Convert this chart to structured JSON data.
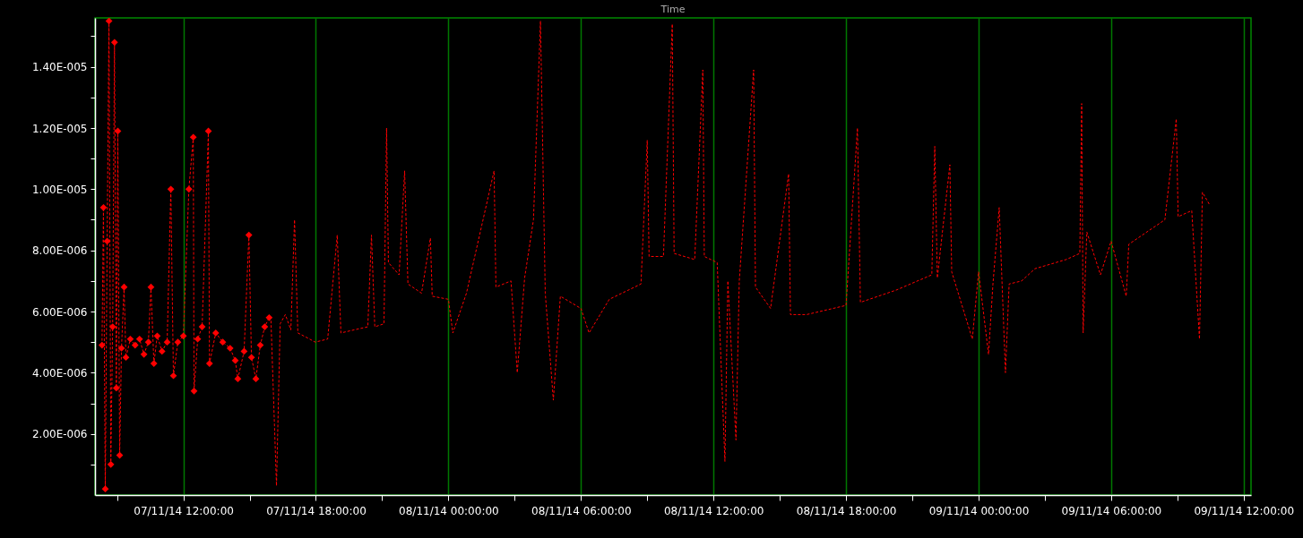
{
  "chart_data": {
    "type": "line",
    "title": "Time",
    "xlim": [
      "--11-07T08:00",
      "--11-09T12:20"
    ],
    "xticks": [
      {
        "value": "--11-07T09:00",
        "label": null
      },
      {
        "value": "--11-07T12:00",
        "label": "07/11/14 12:00:00"
      },
      {
        "value": "--11-07T15:00",
        "label": null
      },
      {
        "value": "--11-07T18:00",
        "label": "07/11/14 18:00:00"
      },
      {
        "value": "--11-07T21:00",
        "label": null
      },
      {
        "value": "--11-08T00:00",
        "label": "08/11/14 00:00:00"
      },
      {
        "value": "--11-08T03:00",
        "label": null
      },
      {
        "value": "--11-08T06:00",
        "label": "08/11/14 06:00:00"
      },
      {
        "value": "--11-08T09:00",
        "label": null
      },
      {
        "value": "--11-08T12:00",
        "label": "08/11/14 12:00:00"
      },
      {
        "value": "--11-08T15:00",
        "label": null
      },
      {
        "value": "--11-08T18:00",
        "label": "08/11/14 18:00:00"
      },
      {
        "value": "--11-08T21:00",
        "label": null
      },
      {
        "value": "--11-09T00:00",
        "label": "09/11/14 00:00:00"
      },
      {
        "value": "--11-09T03:00",
        "label": null
      },
      {
        "value": "--11-09T06:00",
        "label": "09/11/14 06:00:00"
      },
      {
        "value": "--11-09T09:00",
        "label": null
      },
      {
        "value": "--11-09T12:00",
        "label": "09/11/14 12:00:00"
      }
    ],
    "ylim": [
      0,
      1.56e-05
    ],
    "yticks": [
      {
        "value": 1e-06,
        "label": null
      },
      {
        "value": 2e-06,
        "label": "2.00E-006"
      },
      {
        "value": 3e-06,
        "label": null
      },
      {
        "value": 4e-06,
        "label": "4.00E-006"
      },
      {
        "value": 5e-06,
        "label": null
      },
      {
        "value": 6e-06,
        "label": "6.00E-006"
      },
      {
        "value": 7e-06,
        "label": null
      },
      {
        "value": 8e-06,
        "label": "8.00E-006"
      },
      {
        "value": 9e-06,
        "label": null
      },
      {
        "value": 1e-05,
        "label": "1.00E-005"
      },
      {
        "value": 1.1e-05,
        "label": null
      },
      {
        "value": 1.2e-05,
        "label": "1.20E-005"
      },
      {
        "value": 1.3e-05,
        "label": null
      },
      {
        "value": 1.4e-05,
        "label": "1.40E-005"
      },
      {
        "value": 1.5e-05,
        "label": null
      }
    ],
    "grid": "x",
    "series": [
      {
        "color": "#ff0000",
        "marker": "diamond",
        "line_style": "dashed",
        "x": [
          "--11-07T08:19",
          "--11-07T08:23",
          "--11-07T08:28",
          "--11-07T08:33",
          "--11-07T08:38",
          "--11-07T08:43",
          "--11-07T08:48",
          "--11-07T08:53",
          "--11-07T08:58",
          "--11-07T09:02",
          "--11-07T09:07",
          "--11-07T09:12",
          "--11-07T09:19",
          "--11-07T09:24",
          "--11-07T09:36",
          "--11-07T09:49",
          "--11-07T10:01",
          "--11-07T10:13",
          "--11-07T10:25",
          "--11-07T10:32",
          "--11-07T10:40",
          "--11-07T10:49",
          "--11-07T11:02",
          "--11-07T11:16",
          "--11-07T11:26",
          "--11-07T11:33",
          "--11-07T11:45",
          "--11-07T12:00",
          "--11-07T12:15",
          "--11-07T12:27",
          "--11-07T12:29",
          "--11-07T12:39",
          "--11-07T12:51",
          "--11-07T13:08",
          "--11-07T13:11",
          "--11-07T13:28",
          "--11-07T13:47",
          "--11-07T14:07",
          "--11-07T14:21",
          "--11-07T14:28",
          "--11-07T14:45",
          "--11-07T14:58",
          "--11-07T15:05",
          "--11-07T15:17",
          "--11-07T15:29",
          "--11-07T15:41",
          "--11-07T15:53"
        ],
        "values": [
          4.9e-06,
          9.4e-06,
          2e-07,
          8.3e-06,
          1.55e-05,
          1e-06,
          5.5e-06,
          1.48e-05,
          3.5e-06,
          1.19e-05,
          1.3e-06,
          4.8e-06,
          6.8e-06,
          4.5e-06,
          5.1e-06,
          4.9e-06,
          5.1e-06,
          4.6e-06,
          5e-06,
          6.8e-06,
          4.3e-06,
          5.2e-06,
          4.7e-06,
          5e-06,
          1e-05,
          3.9e-06,
          5e-06,
          5.2e-06,
          1e-05,
          1.17e-05,
          3.4e-06,
          5.1e-06,
          5.5e-06,
          1.19e-05,
          4.3e-06,
          5.3e-06,
          5e-06,
          4.8e-06,
          4.4e-06,
          3.8e-06,
          4.7e-06,
          8.5e-06,
          4.5e-06,
          3.8e-06,
          4.9e-06,
          5.5e-06,
          5.8e-06
        ]
      },
      {
        "color": "#ff0000",
        "marker": "none",
        "line_style": "dashed",
        "x": [
          "--11-07T15:58",
          "--11-07T16:13",
          "--11-07T16:23",
          "--11-07T16:37",
          "--11-07T16:52",
          "--11-07T17:02",
          "--11-07T17:11",
          "--11-07T17:43",
          "--11-07T17:58",
          "--11-07T18:32",
          "--11-07T18:58",
          "--11-07T19:08",
          "--11-07T19:44",
          "--11-07T20:21",
          "--11-07T20:31",
          "--11-07T20:40",
          "--11-07T21:05",
          "--11-07T21:12",
          "--11-07T21:17",
          "--11-07T21:46",
          "--11-07T22:01",
          "--11-07T22:10",
          "--11-07T22:47",
          "--11-07T23:11",
          "--11-07T23:16",
          "--11-08T00:00",
          "--11-08T00:12",
          "--11-08T00:49",
          "--11-08T02:04",
          "--11-08T02:09",
          "--11-08T02:50",
          "--11-08T03:07",
          "--11-08T03:27",
          "--11-08T03:51",
          "--11-08T04:10",
          "--11-08T04:23",
          "--11-08T04:45",
          "--11-08T05:04",
          "--11-08T06:00",
          "--11-08T06:22",
          "--11-08T07:17",
          "--11-08T08:43",
          "--11-08T09:00",
          "--11-08T09:05",
          "--11-08T09:44",
          "--11-08T10:08",
          "--11-08T10:13",
          "--11-08T11:09",
          "--11-08T11:31",
          "--11-08T11:35",
          "--11-08T12:10",
          "--11-08T12:31",
          "--11-08T12:39",
          "--11-08T13:01",
          "--11-08T13:10",
          "--11-08T13:49",
          "--11-08T13:54",
          "--11-08T14:35",
          "--11-08T15:24",
          "--11-08T15:29",
          "--11-08T16:13",
          "--11-08T18:00",
          "--11-08T18:31",
          "--11-08T18:39",
          "--11-08T20:16",
          "--11-08T21:53",
          "--11-08T22:01",
          "--11-08T22:08",
          "--11-08T22:42",
          "--11-08T22:47",
          "--11-08T23:43",
          "--11-09T00:00",
          "--11-09T00:27",
          "--11-09T00:39",
          "--11-09T00:56",
          "--11-09T01:13",
          "--11-09T01:23",
          "--11-09T01:57",
          "--11-09T02:33",
          "--11-09T03:58",
          "--11-09T04:35",
          "--11-09T04:40",
          "--11-09T04:44",
          "--11-09T04:54",
          "--11-09T05:31",
          "--11-09T06:00",
          "--11-09T06:41",
          "--11-09T06:48",
          "--11-09T08:26",
          "--11-09T08:57",
          "--11-09T09:02",
          "--11-09T09:39",
          "--11-09T10:00",
          "--11-09T10:08",
          "--11-09T10:27"
        ],
        "values": [
          5.7e-06,
          3e-07,
          5.6e-06,
          5.9e-06,
          5.4e-06,
          9e-06,
          5.3e-06,
          5.1e-06,
          5e-06,
          5.1e-06,
          8.5e-06,
          5.3e-06,
          5.4e-06,
          5.5e-06,
          8.5e-06,
          5.5e-06,
          5.6e-06,
          1.2e-05,
          7.6e-06,
          7.2e-06,
          1.06e-05,
          6.9e-06,
          6.6e-06,
          8.4e-06,
          6.5e-06,
          6.4e-06,
          5.3e-06,
          6.6e-06,
          1.06e-05,
          6.8e-06,
          7e-06,
          4e-06,
          7.1e-06,
          9e-06,
          1.55e-05,
          6.6e-06,
          3.1e-06,
          6.5e-06,
          6.1e-06,
          5.3e-06,
          6.4e-06,
          6.9e-06,
          1.16e-05,
          7.8e-06,
          7.8e-06,
          1.54e-05,
          7.9e-06,
          7.7e-06,
          1.39e-05,
          7.8e-06,
          7.6e-06,
          1.1e-06,
          7e-06,
          1.8e-06,
          7e-06,
          1.39e-05,
          6.8e-06,
          6.1e-06,
          1.05e-05,
          5.9e-06,
          5.9e-06,
          6.2e-06,
          1.2e-05,
          6.3e-06,
          6.7e-06,
          7.2e-06,
          1.14e-05,
          7.1e-06,
          1.08e-05,
          7.3e-06,
          5.1e-06,
          7.3e-06,
          4.6e-06,
          6.9e-06,
          9.4e-06,
          4e-06,
          6.9e-06,
          7e-06,
          7.4e-06,
          7.7e-06,
          7.9e-06,
          1.28e-05,
          5.3e-06,
          8.6e-06,
          7.2e-06,
          8.3e-06,
          6.5e-06,
          8.2e-06,
          9e-06,
          1.23e-05,
          9.1e-06,
          9.3e-06,
          5.1e-06,
          9.9e-06,
          9.5e-06
        ]
      }
    ]
  }
}
